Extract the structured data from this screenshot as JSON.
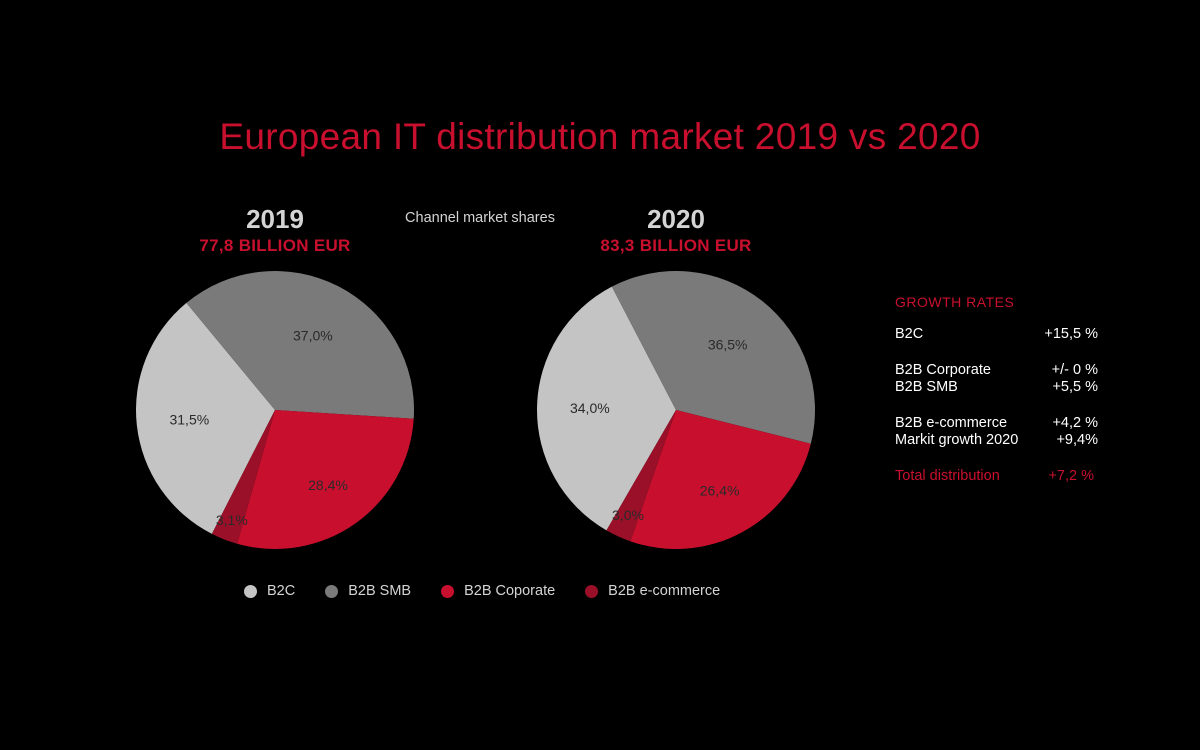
{
  "title": "European IT distribution market 2019 vs 2020",
  "subtitle": "Channel market shares",
  "colors": {
    "background": "#000000",
    "accent": "#c8102e",
    "b2c": "#c4c4c4",
    "b2b_smb": "#7a7a7a",
    "b2b_corporate": "#c8102e",
    "b2b_ecommerce": "#9a1028"
  },
  "chart_data": [
    {
      "type": "pie",
      "title": "2019",
      "subtitle": "77,8 BILLION EUR",
      "slices": [
        {
          "name": "B2C",
          "value": 31.5,
          "label": "31,5%",
          "color": "#c4c4c4"
        },
        {
          "name": "B2B SMB",
          "value": 37.0,
          "label": "37,0%",
          "color": "#7a7a7a"
        },
        {
          "name": "B2B Coporate",
          "value": 28.4,
          "label": "28,4%",
          "color": "#c8102e"
        },
        {
          "name": "B2B e-commerce",
          "value": 3.1,
          "label": "3,1%",
          "color": "#9a1028"
        }
      ]
    },
    {
      "type": "pie",
      "title": "2020",
      "subtitle": "83,3 BILLION EUR",
      "slices": [
        {
          "name": "B2C",
          "value": 34.0,
          "label": "34,0%",
          "color": "#c4c4c4"
        },
        {
          "name": "B2B SMB",
          "value": 36.5,
          "label": "36,5%",
          "color": "#7a7a7a"
        },
        {
          "name": "B2B Coporate",
          "value": 26.4,
          "label": "26,4%",
          "color": "#c8102e"
        },
        {
          "name": "B2B e-commerce",
          "value": 3.0,
          "label": "3,0%",
          "color": "#9a1028"
        }
      ]
    }
  ],
  "legend": [
    {
      "label": "B2C",
      "color": "#c4c4c4"
    },
    {
      "label": "B2B SMB",
      "color": "#7a7a7a"
    },
    {
      "label": "B2B Coporate",
      "color": "#c8102e"
    },
    {
      "label": "B2B e-commerce",
      "color": "#9a1028"
    }
  ],
  "growth": {
    "title": "GROWTH RATES",
    "rows": [
      {
        "label": "B2C",
        "value": "+15,5 %"
      },
      {
        "label": "B2B Corporate",
        "value": "+/- 0 %"
      },
      {
        "label": "B2B SMB",
        "value": "+5,5 %"
      },
      {
        "label": "B2B e-commerce",
        "value": "+4,2 %"
      },
      {
        "label": "Markit growth 2020",
        "value": "+9,4%"
      },
      {
        "label": "Total distribution",
        "value": "+7,2 %"
      }
    ]
  }
}
